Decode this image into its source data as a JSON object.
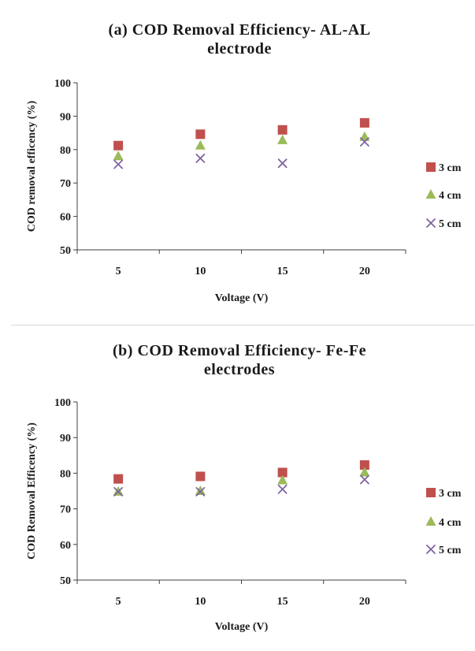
{
  "chart_data": [
    {
      "type": "scatter",
      "title_lines": [
        "(a) COD Removal Efficiency- AL-AL",
        "electrode"
      ],
      "xlabel": "Voltage (V)",
      "ylabel": "COD  removal efficency (%)",
      "categories": [
        "5",
        "10",
        "15",
        "20"
      ],
      "ylim": [
        50,
        100
      ],
      "yticks": [
        50,
        60,
        70,
        80,
        90,
        100
      ],
      "grid": false,
      "legend_position": "right",
      "series": [
        {
          "name": "3 cm",
          "marker": "square",
          "color": "#c0504d",
          "values": [
            81.2,
            84.6,
            85.9,
            88.0
          ]
        },
        {
          "name": "4 cm",
          "marker": "triangle",
          "color": "#9bbb59",
          "values": [
            78.0,
            81.2,
            82.8,
            83.8
          ]
        },
        {
          "name": "5 cm",
          "marker": "x",
          "color": "#8064a2",
          "values": [
            75.6,
            77.4,
            75.9,
            82.3
          ]
        }
      ]
    },
    {
      "type": "scatter",
      "title_lines": [
        "(b) COD Removal Efficiency- Fe-Fe",
        "electrodes"
      ],
      "xlabel": "Voltage (V)",
      "ylabel": "COD  Removal Efficency (%)",
      "categories": [
        "5",
        "10",
        "15",
        "20"
      ],
      "ylim": [
        50,
        100
      ],
      "yticks": [
        50,
        60,
        70,
        80,
        90,
        100
      ],
      "grid": false,
      "legend_position": "right",
      "series": [
        {
          "name": "3 cm",
          "marker": "square",
          "color": "#c0504d",
          "values": [
            78.4,
            79.1,
            80.2,
            82.3
          ]
        },
        {
          "name": "4 cm",
          "marker": "triangle",
          "color": "#9bbb59",
          "values": [
            74.8,
            75.0,
            78.0,
            80.2
          ]
        },
        {
          "name": "5 cm",
          "marker": "x",
          "color": "#8064a2",
          "values": [
            74.8,
            74.8,
            75.5,
            78.2
          ]
        }
      ]
    }
  ]
}
